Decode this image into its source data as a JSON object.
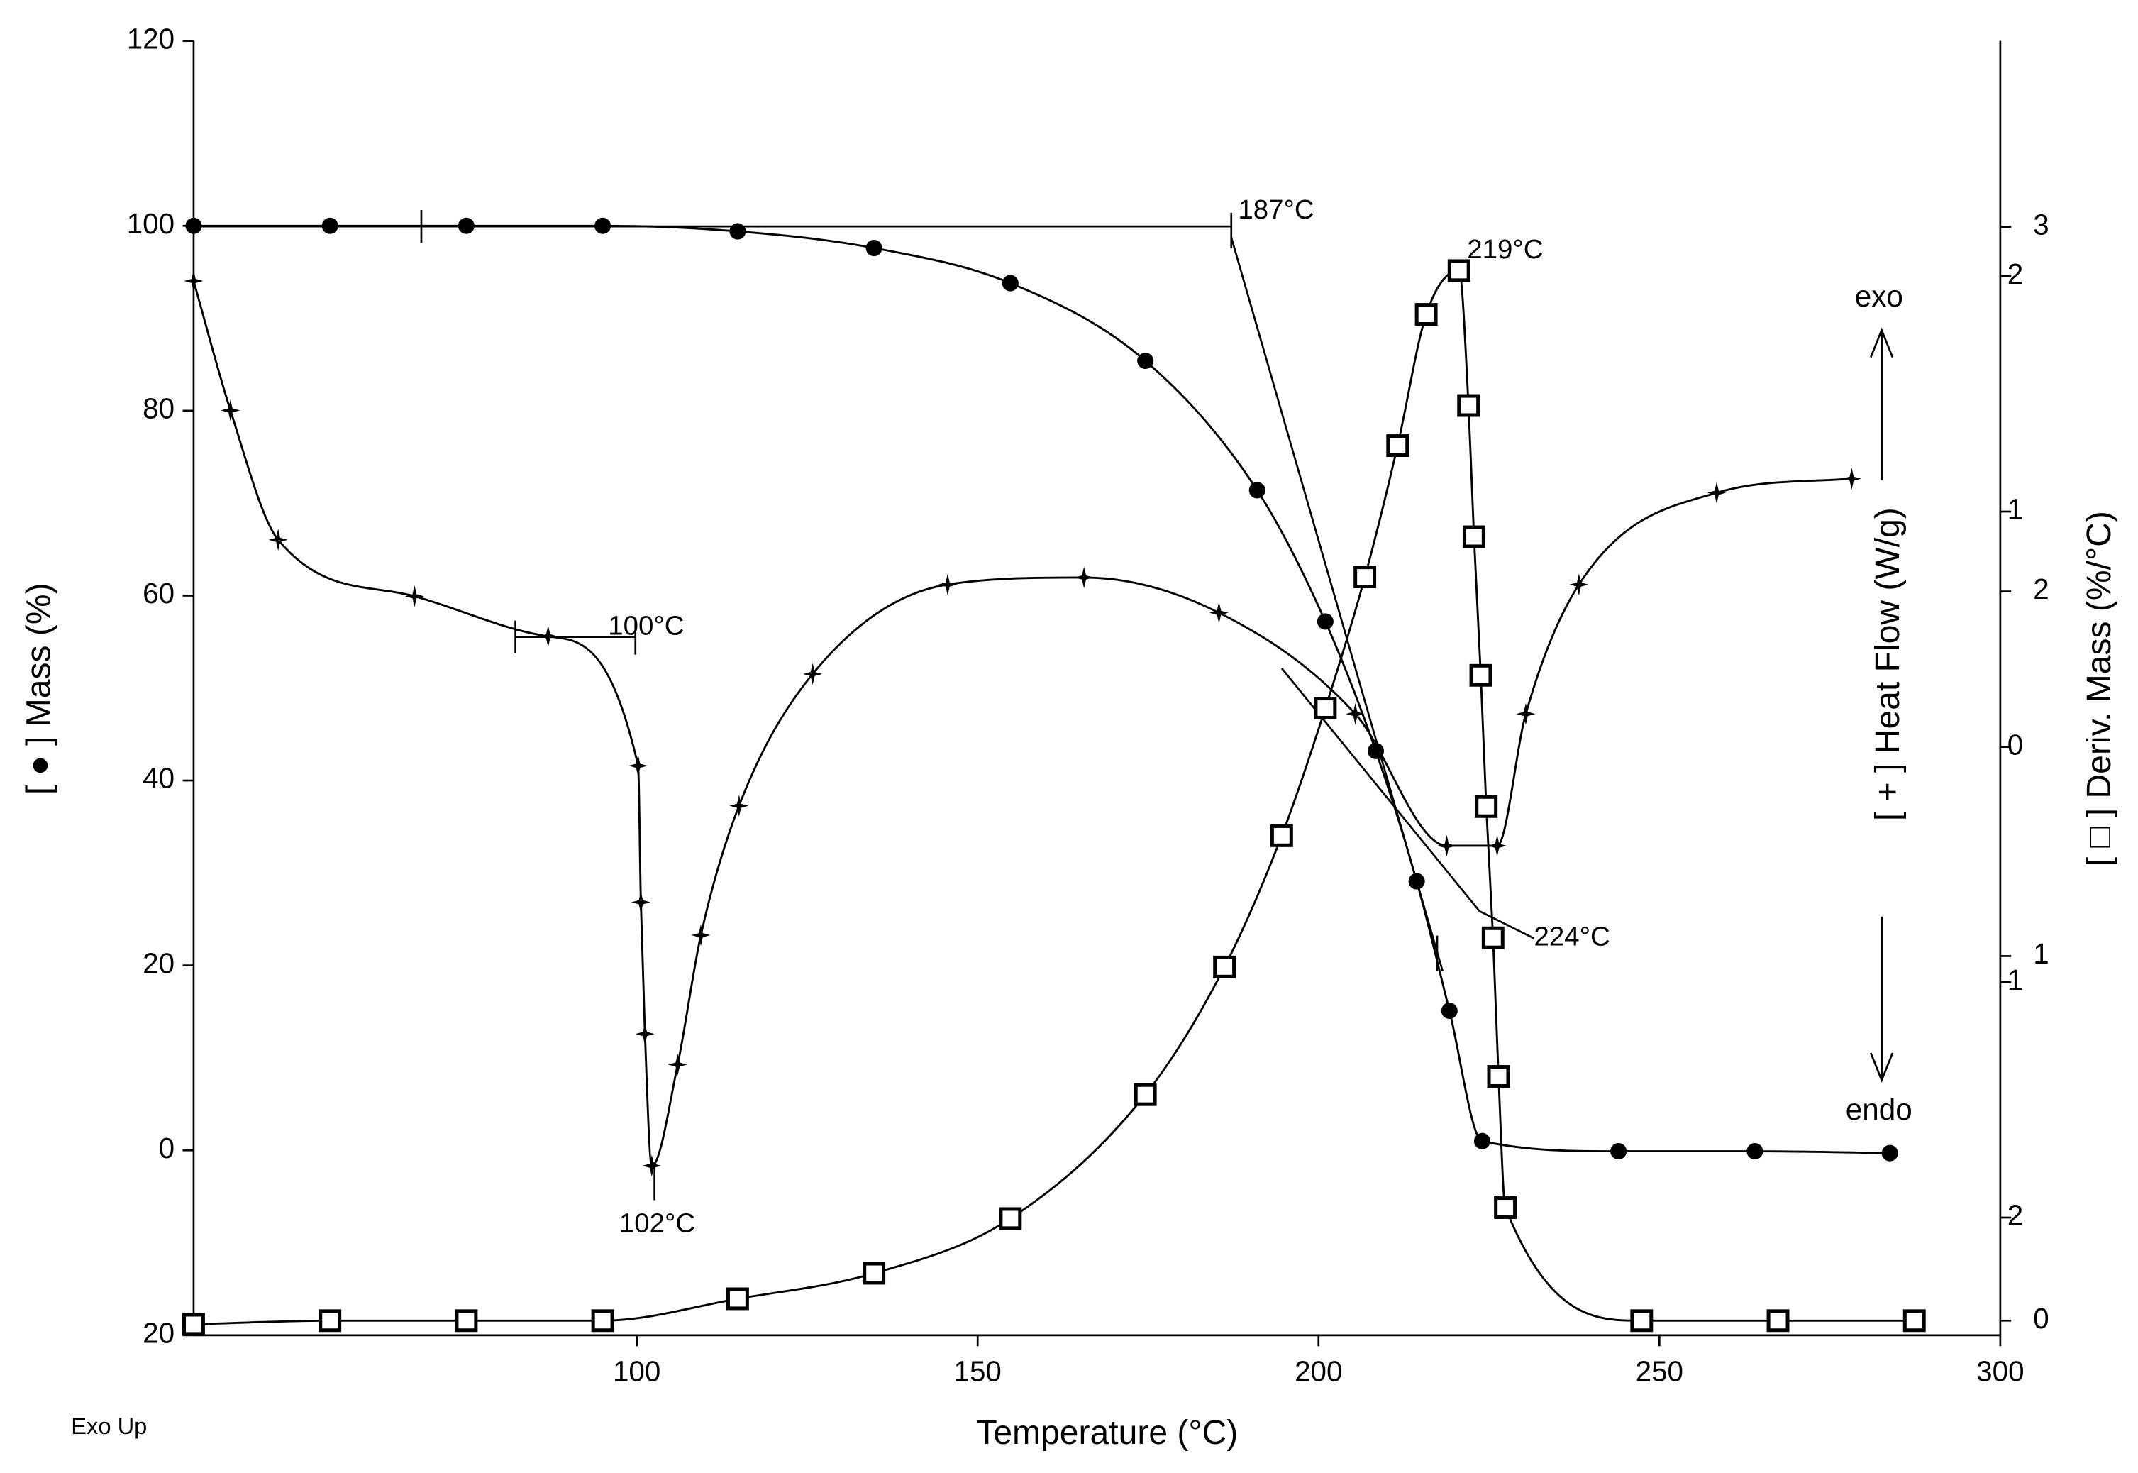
{
  "chart_data": {
    "type": "line",
    "xlabel": "Temperature (°C)",
    "ylabel": "[ ● ] Mass (%)",
    "y2label": "[ + ] Heat Flow (W/g)",
    "y3label": "[ □ ] Deriv. Mass (%/°C)",
    "xlim": [
      35,
      300
    ],
    "xticks": [
      100,
      150,
      200,
      250,
      300
    ],
    "ylim": [
      -20,
      120
    ],
    "yticks": [
      {
        "value": -20,
        "label": "20"
      },
      0,
      20,
      40,
      60,
      80,
      100,
      120
    ],
    "y2lim": [
      -2.5,
      3
    ],
    "y2ticks": [
      {
        "value": -2,
        "label": "2"
      },
      {
        "value": -1,
        "label": "1"
      },
      0,
      1,
      2
    ],
    "y3lim": [
      -0.04,
      3.51
    ],
    "y3ticks": [
      0,
      1,
      2,
      3
    ],
    "series": [
      {
        "axis": "y",
        "marker": "circle",
        "color": "#000000",
        "x": [
          35,
          55,
          75,
          95,
          114.8,
          134.8,
          154.8,
          174.6,
          191,
          201,
          208.4,
          214.4,
          219.2,
          224,
          244,
          264,
          283.8
        ],
        "values": [
          100,
          100,
          100,
          100,
          99.4,
          97.6,
          93.8,
          85.4,
          71.4,
          57.2,
          43.2,
          29.1,
          15.1,
          1.0,
          -0.1,
          -0.1,
          -0.3
        ]
      },
      {
        "axis": "y2",
        "marker": "plus",
        "color": "#000000",
        "x": [
          35,
          40.4,
          47.4,
          67.4,
          87,
          100.2,
          100.6,
          101.2,
          102.2,
          106,
          109.4,
          115,
          125.8,
          145.6,
          165.6,
          185.4,
          205.4,
          218.8,
          226.2,
          230.4,
          238.2,
          258.4,
          278.2
        ],
        "values": [
          1.98,
          1.43,
          0.88,
          0.64,
          0.47,
          -0.08,
          -0.66,
          -1.22,
          -1.78,
          -1.35,
          -0.8,
          -0.25,
          0.31,
          0.69,
          0.72,
          0.57,
          0.14,
          -0.42,
          -0.42,
          0.14,
          0.69,
          1.08,
          1.14
        ]
      },
      {
        "axis": "y3",
        "marker": "square",
        "color": "#000000",
        "x": [
          35,
          55,
          75,
          95,
          114.8,
          134.8,
          154.8,
          174.6,
          186.2,
          194.6,
          201,
          206.8,
          211.6,
          215.8,
          220.6,
          222,
          222.8,
          223.8,
          224.6,
          225.6,
          226.4,
          227.4,
          247.4,
          267.4,
          287.4
        ],
        "values": [
          -0.01,
          0,
          0,
          0,
          0.06,
          0.13,
          0.28,
          0.62,
          0.97,
          1.33,
          1.68,
          2.04,
          2.4,
          2.76,
          2.88,
          2.51,
          2.15,
          1.77,
          1.41,
          1.05,
          0.67,
          0.31,
          0,
          0,
          0
        ]
      }
    ],
    "annotations": [
      "187°C",
      "219°C",
      "100°C",
      "102°C",
      "224°C",
      "exo",
      "endo",
      "Exo Up"
    ]
  }
}
